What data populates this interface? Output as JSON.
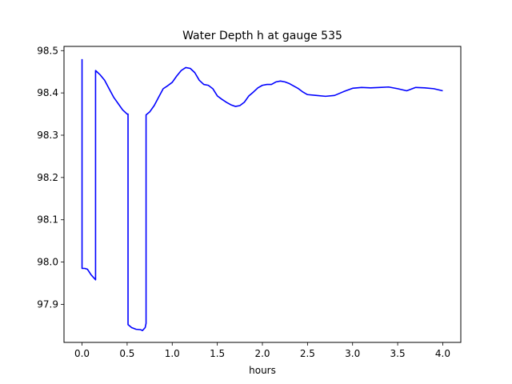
{
  "chart_data": {
    "type": "line",
    "title": "Water Depth h at gauge 535",
    "xlabel": "hours",
    "ylabel": "",
    "xlim": [
      -0.2,
      4.2
    ],
    "ylim": [
      97.81,
      98.51
    ],
    "xticks": [
      0.0,
      0.5,
      1.0,
      1.5,
      2.0,
      2.5,
      3.0,
      3.5,
      4.0
    ],
    "xtick_labels": [
      "0.0",
      "0.5",
      "1.0",
      "1.5",
      "2.0",
      "2.5",
      "3.0",
      "3.5",
      "4.0"
    ],
    "yticks": [
      97.9,
      98.0,
      98.1,
      98.2,
      98.3,
      98.4,
      98.5
    ],
    "ytick_labels": [
      "97.9",
      "98.0",
      "98.1",
      "98.2",
      "98.3",
      "98.4",
      "98.5"
    ],
    "grid": false,
    "series": [
      {
        "color": "#0000ff",
        "x": [
          0.0,
          0.0,
          0.03,
          0.06,
          0.1,
          0.15,
          0.15,
          0.2,
          0.25,
          0.3,
          0.35,
          0.4,
          0.45,
          0.5,
          0.51,
          0.51,
          0.55,
          0.6,
          0.65,
          0.67,
          0.7,
          0.71,
          0.71,
          0.75,
          0.8,
          0.85,
          0.9,
          0.95,
          1.0,
          1.05,
          1.1,
          1.15,
          1.2,
          1.25,
          1.3,
          1.35,
          1.4,
          1.45,
          1.5,
          1.55,
          1.6,
          1.65,
          1.7,
          1.75,
          1.8,
          1.85,
          1.9,
          1.95,
          2.0,
          2.05,
          2.1,
          2.15,
          2.2,
          2.25,
          2.3,
          2.35,
          2.4,
          2.45,
          2.5,
          2.6,
          2.7,
          2.8,
          2.9,
          3.0,
          3.1,
          3.2,
          3.3,
          3.4,
          3.5,
          3.6,
          3.7,
          3.8,
          3.9,
          4.0
        ],
        "y": [
          98.48,
          97.985,
          97.985,
          97.983,
          97.97,
          97.958,
          98.453,
          98.443,
          98.43,
          98.41,
          98.39,
          98.375,
          98.36,
          98.35,
          98.35,
          97.852,
          97.845,
          97.841,
          97.84,
          97.838,
          97.845,
          97.855,
          98.348,
          98.355,
          98.37,
          98.39,
          98.41,
          98.417,
          98.425,
          98.44,
          98.453,
          98.46,
          98.458,
          98.448,
          98.43,
          98.42,
          98.418,
          98.41,
          98.393,
          98.385,
          98.378,
          98.372,
          98.368,
          98.37,
          98.378,
          98.393,
          98.402,
          98.412,
          98.418,
          98.42,
          98.42,
          98.426,
          98.428,
          98.426,
          98.422,
          98.416,
          98.41,
          98.402,
          98.396,
          98.394,
          98.392,
          98.394,
          98.403,
          98.411,
          98.413,
          98.412,
          98.413,
          98.414,
          98.41,
          98.405,
          98.413,
          98.412,
          98.41,
          98.405
        ]
      }
    ]
  }
}
